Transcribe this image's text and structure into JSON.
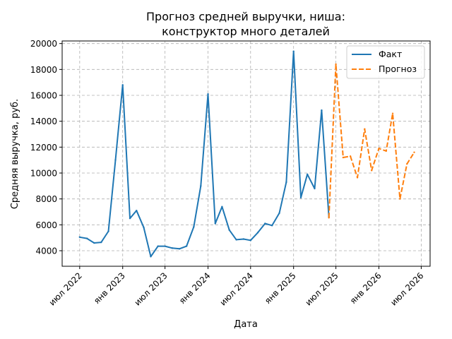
{
  "chart_data": {
    "type": "line",
    "title_lines": [
      "Прогноз средней выручки, ниша:",
      "конструктор много деталей"
    ],
    "xlabel": "Дата",
    "ylabel": "Средняя выручка, руб.",
    "x_ticks": [
      {
        "date": "2022-07-01",
        "label": "июл 2022"
      },
      {
        "date": "2023-01-01",
        "label": "янв 2023"
      },
      {
        "date": "2023-07-01",
        "label": "июл 2023"
      },
      {
        "date": "2024-01-01",
        "label": "янв 2024"
      },
      {
        "date": "2024-07-01",
        "label": "июл 2024"
      },
      {
        "date": "2025-01-01",
        "label": "янв 2025"
      },
      {
        "date": "2025-07-01",
        "label": "июл 2025"
      },
      {
        "date": "2026-01-01",
        "label": "янв 2026"
      },
      {
        "date": "2026-07-01",
        "label": "июл 2026"
      }
    ],
    "x_range": [
      "2022-04-17",
      "2026-08-08"
    ],
    "y_ticks": [
      4000,
      6000,
      8000,
      10000,
      12000,
      14000,
      16000,
      18000,
      20000
    ],
    "ylim": [
      2800,
      20200
    ],
    "grid": true,
    "legend_position": "top-right",
    "series": [
      {
        "name": "Факт",
        "color": "#1f77b4",
        "style": "solid",
        "points": [
          {
            "x": "2022-07-01",
            "y": 5050
          },
          {
            "x": "2022-08-01",
            "y": 4950
          },
          {
            "x": "2022-09-01",
            "y": 4600
          },
          {
            "x": "2022-10-01",
            "y": 4650
          },
          {
            "x": "2022-11-01",
            "y": 5500
          },
          {
            "x": "2022-12-01",
            "y": 11000
          },
          {
            "x": "2023-01-01",
            "y": 16800
          },
          {
            "x": "2023-02-01",
            "y": 6500
          },
          {
            "x": "2023-03-01",
            "y": 7100
          },
          {
            "x": "2023-04-01",
            "y": 5800
          },
          {
            "x": "2023-05-01",
            "y": 3550
          },
          {
            "x": "2023-06-01",
            "y": 4350
          },
          {
            "x": "2023-07-01",
            "y": 4350
          },
          {
            "x": "2023-08-01",
            "y": 4200
          },
          {
            "x": "2023-09-01",
            "y": 4150
          },
          {
            "x": "2023-10-01",
            "y": 4350
          },
          {
            "x": "2023-11-01",
            "y": 5850
          },
          {
            "x": "2023-12-01",
            "y": 9000
          },
          {
            "x": "2024-01-01",
            "y": 16100
          },
          {
            "x": "2024-02-01",
            "y": 6100
          },
          {
            "x": "2024-03-01",
            "y": 7400
          },
          {
            "x": "2024-04-01",
            "y": 5600
          },
          {
            "x": "2024-05-01",
            "y": 4850
          },
          {
            "x": "2024-06-01",
            "y": 4900
          },
          {
            "x": "2024-07-01",
            "y": 4800
          },
          {
            "x": "2024-08-01",
            "y": 5400
          },
          {
            "x": "2024-09-01",
            "y": 6100
          },
          {
            "x": "2024-10-01",
            "y": 5950
          },
          {
            "x": "2024-11-01",
            "y": 6900
          },
          {
            "x": "2024-12-01",
            "y": 9300
          },
          {
            "x": "2025-01-01",
            "y": 19400
          },
          {
            "x": "2025-02-01",
            "y": 8100
          },
          {
            "x": "2025-03-01",
            "y": 9900
          },
          {
            "x": "2025-04-01",
            "y": 8800
          },
          {
            "x": "2025-05-01",
            "y": 14850
          },
          {
            "x": "2025-06-01",
            "y": 6600
          }
        ]
      },
      {
        "name": "Прогноз",
        "color": "#ff7f0e",
        "style": "dashed",
        "points": [
          {
            "x": "2025-06-01",
            "y": 6550
          },
          {
            "x": "2025-07-01",
            "y": 18400
          },
          {
            "x": "2025-08-01",
            "y": 11200
          },
          {
            "x": "2025-09-01",
            "y": 11300
          },
          {
            "x": "2025-10-01",
            "y": 9650
          },
          {
            "x": "2025-11-01",
            "y": 13400
          },
          {
            "x": "2025-12-01",
            "y": 10200
          },
          {
            "x": "2026-01-01",
            "y": 11900
          },
          {
            "x": "2026-02-01",
            "y": 11700
          },
          {
            "x": "2026-03-01",
            "y": 14600
          },
          {
            "x": "2026-04-01",
            "y": 8000
          },
          {
            "x": "2026-05-01",
            "y": 10700
          },
          {
            "x": "2026-06-01",
            "y": 11600
          }
        ]
      }
    ]
  }
}
